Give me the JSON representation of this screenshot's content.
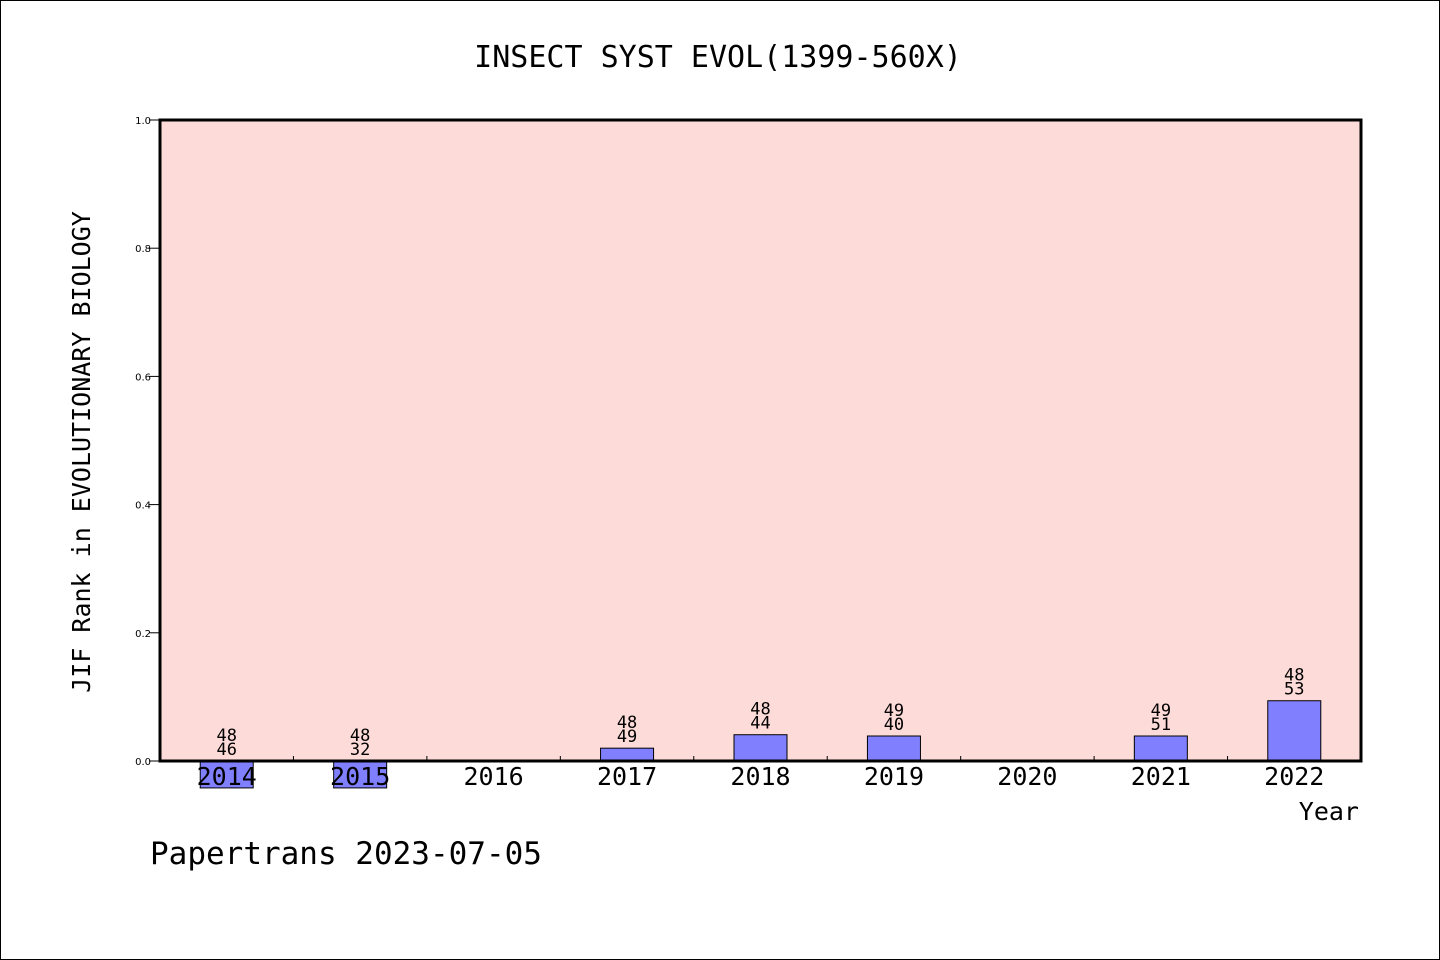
{
  "chart_data": {
    "type": "bar",
    "title": "INSECT SYST EVOL(1399-560X)",
    "xlabel": "Year",
    "ylabel": "JIF Rank in EVOLUTIONARY BIOLOGY",
    "ylim": [
      0,
      1.0
    ],
    "yticks": [
      "0.0",
      "0.2",
      "0.4",
      "0.6",
      "0.8",
      "1.0"
    ],
    "categories": [
      "2014",
      "2015",
      "2016",
      "2017",
      "2018",
      "2019",
      "2020",
      "2021",
      "2022"
    ],
    "values": [
      -0.042,
      -0.042,
      null,
      0.02,
      0.041,
      0.039,
      null,
      0.039,
      0.094
    ],
    "rank": [
      "46",
      "32",
      "",
      "49",
      "44",
      "40",
      "",
      "51",
      "53"
    ],
    "total": [
      "48",
      "48",
      "",
      "48",
      "48",
      "49",
      "",
      "49",
      "48"
    ],
    "grid": false,
    "legend": "none",
    "colors": {
      "plot_background": "#fddbd8",
      "bar_fill": "#8080ff",
      "axis": "#000000"
    }
  },
  "footer": "Papertrans 2023-07-05"
}
